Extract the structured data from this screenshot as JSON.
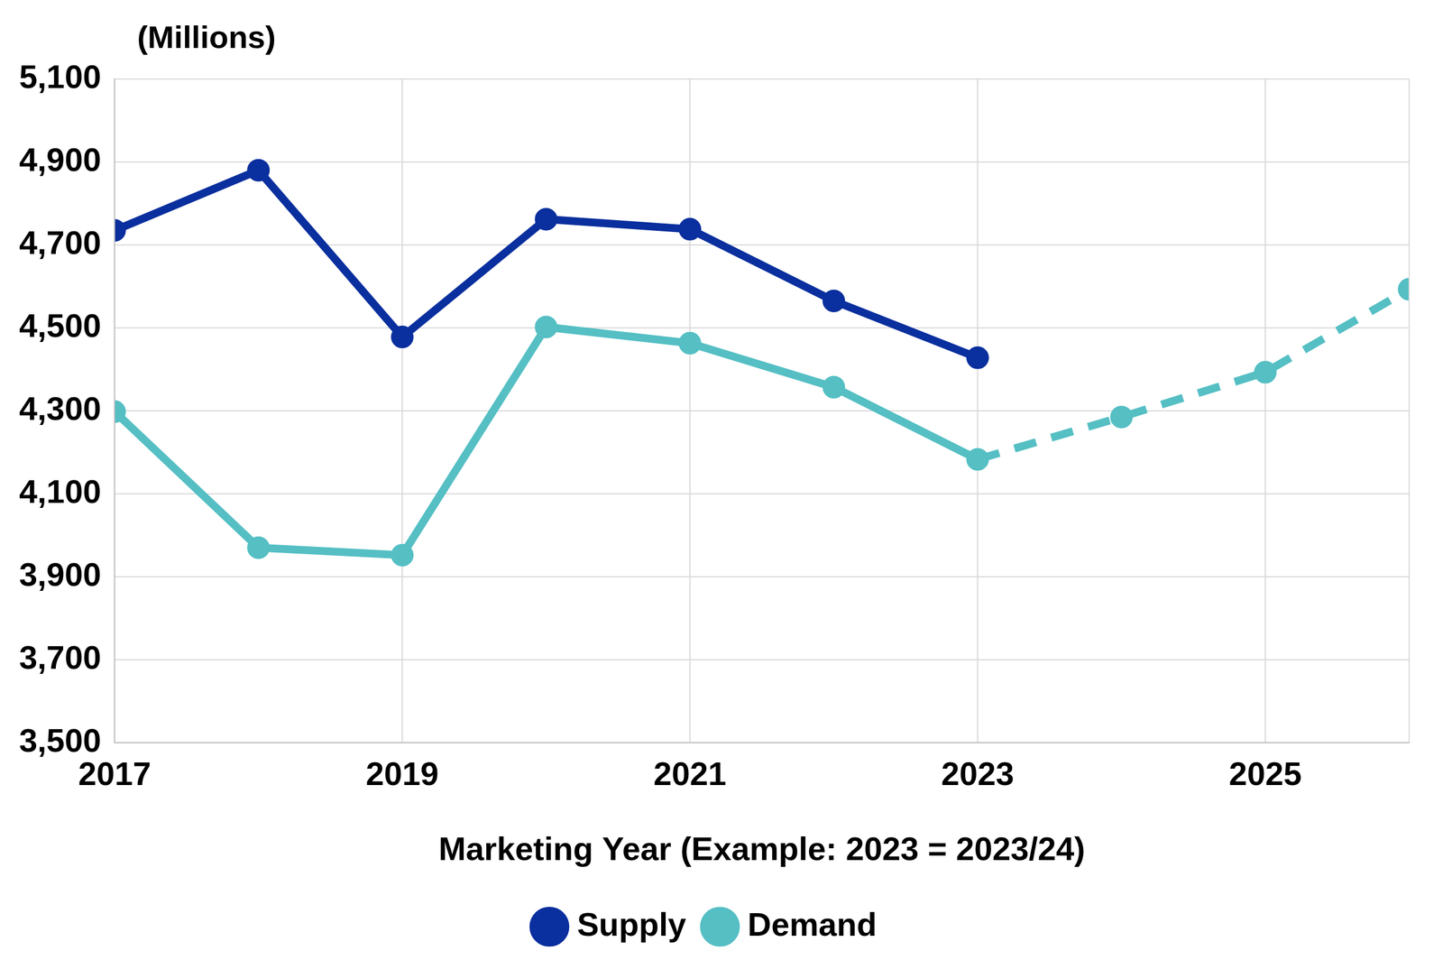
{
  "chart_data": {
    "type": "line",
    "ylabel": "(Millions)",
    "xlabel": "Marketing Year (Example: 2023 = 2023/24)",
    "x": [
      2017,
      2018,
      2019,
      2020,
      2021,
      2022,
      2023,
      2024,
      2025,
      2026
    ],
    "series": [
      {
        "name": "Supply",
        "color": "#0a2f9e",
        "marker": "circle",
        "line_style": "solid",
        "values": [
          4735,
          4880,
          4478,
          4762,
          4738,
          4565,
          4428,
          null,
          null,
          null
        ]
      },
      {
        "name": "Demand",
        "color": "#55bfc4",
        "marker": "circle",
        "line_style": "solid",
        "values": [
          4298,
          3970,
          3952,
          4502,
          4463,
          4357,
          4183,
          null,
          null,
          null
        ]
      },
      {
        "name": "Demand",
        "color": "#55bfc4",
        "marker": "circle",
        "line_style": "dashed",
        "values": [
          null,
          null,
          null,
          null,
          null,
          null,
          4183,
          4285,
          4393,
          4593
        ]
      }
    ],
    "xlim": [
      2017,
      2026
    ],
    "xticks": [
      2017,
      2019,
      2021,
      2023,
      2025
    ],
    "ylim": [
      3500,
      5100
    ],
    "yticks": [
      {
        "value": 3500,
        "label": "3,500"
      },
      {
        "value": 3700,
        "label": "3,700"
      },
      {
        "value": 3900,
        "label": "3,900"
      },
      {
        "value": 4100,
        "label": "4,100"
      },
      {
        "value": 4300,
        "label": "4,300"
      },
      {
        "value": 4500,
        "label": "4,500"
      },
      {
        "value": 4700,
        "label": "4,700"
      },
      {
        "value": 4900,
        "label": "4,900"
      },
      {
        "value": 5100,
        "label": "5,100"
      }
    ],
    "grid": true,
    "legend": "bottom"
  }
}
